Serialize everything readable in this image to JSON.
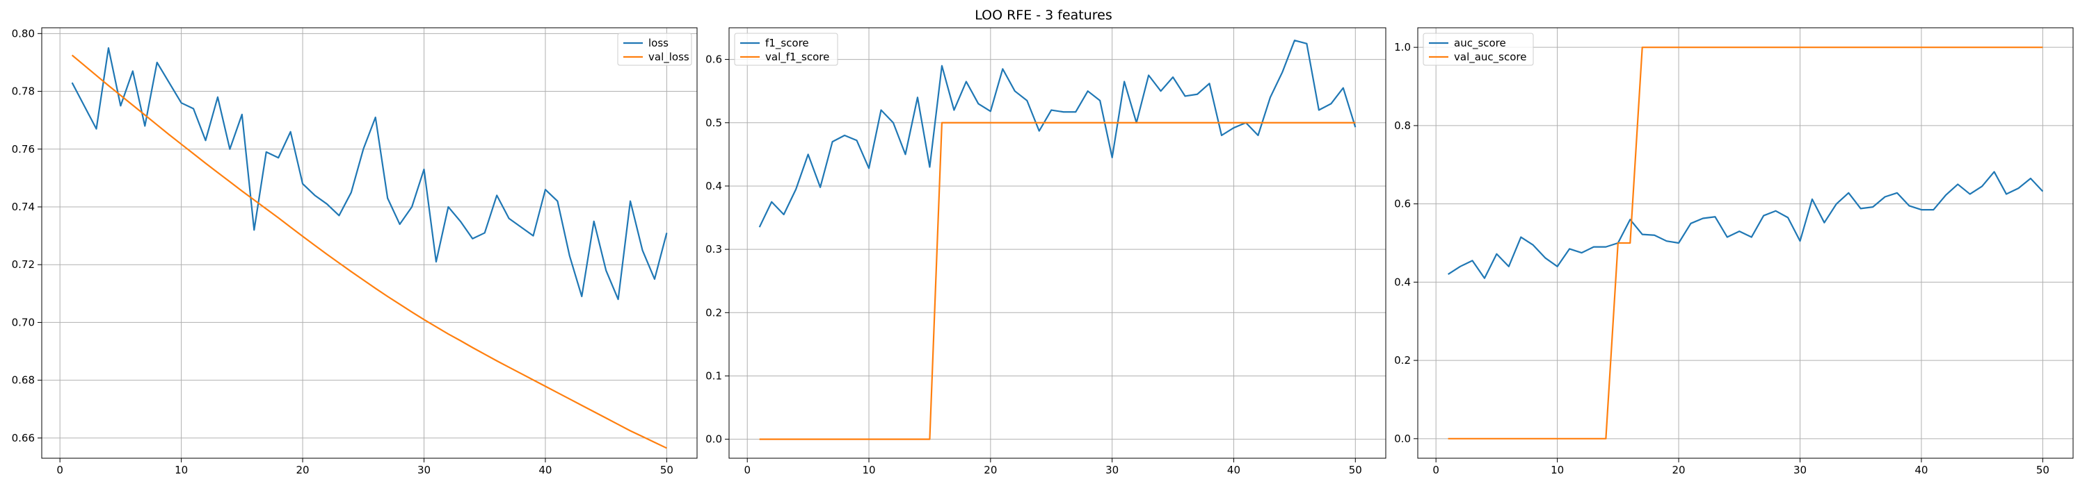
{
  "figure": {
    "title": "LOO RFE - 3 features"
  },
  "colors": {
    "train": "#1f77b4",
    "val": "#ff7f0e",
    "grid": "#b0b0b0"
  },
  "chart_data": [
    {
      "type": "line",
      "title": "",
      "xlabel": "",
      "ylabel": "",
      "xlim": [
        -1.5,
        52.5
      ],
      "ylim": [
        0.653,
        0.802
      ],
      "xticks": [
        0,
        10,
        20,
        30,
        40,
        50
      ],
      "yticks": [
        0.66,
        0.68,
        0.7,
        0.72,
        0.74,
        0.76,
        0.78,
        0.8
      ],
      "ytick_labels": [
        "0.66",
        "0.68",
        "0.70",
        "0.72",
        "0.74",
        "0.76",
        "0.78",
        "0.80"
      ],
      "grid": true,
      "legend_position": "top-right",
      "x": [
        1,
        2,
        3,
        4,
        5,
        6,
        7,
        8,
        9,
        10,
        11,
        12,
        13,
        14,
        15,
        16,
        17,
        18,
        19,
        20,
        21,
        22,
        23,
        24,
        25,
        26,
        27,
        28,
        29,
        30,
        31,
        32,
        33,
        34,
        35,
        36,
        37,
        38,
        39,
        40,
        41,
        42,
        43,
        44,
        45,
        46,
        47,
        48,
        49,
        50
      ],
      "series": [
        {
          "name": "loss",
          "color": "#1f77b4",
          "values": [
            0.783,
            0.775,
            0.767,
            0.795,
            0.775,
            0.787,
            0.768,
            0.79,
            0.783,
            0.776,
            0.774,
            0.763,
            0.778,
            0.76,
            0.772,
            0.732,
            0.759,
            0.757,
            0.766,
            0.748,
            0.744,
            0.741,
            0.737,
            0.745,
            0.76,
            0.771,
            0.743,
            0.734,
            0.74,
            0.753,
            0.721,
            0.74,
            0.735,
            0.729,
            0.731,
            0.744,
            0.736,
            0.733,
            0.73,
            0.746,
            0.742,
            0.723,
            0.709,
            0.735,
            0.718,
            0.708,
            0.742,
            0.725,
            0.715,
            0.731
          ]
        },
        {
          "name": "val_loss",
          "color": "#ff7f0e",
          "values": [
            0.7925,
            0.789,
            0.7855,
            0.782,
            0.7786,
            0.7752,
            0.7718,
            0.7684,
            0.765,
            0.7617,
            0.7584,
            0.7551,
            0.7519,
            0.7487,
            0.7455,
            0.7424,
            0.7393,
            0.7362,
            0.733,
            0.7298,
            0.7267,
            0.7236,
            0.7206,
            0.7176,
            0.7147,
            0.7118,
            0.709,
            0.7063,
            0.7036,
            0.701,
            0.6985,
            0.696,
            0.6937,
            0.6913,
            0.689,
            0.6867,
            0.6845,
            0.6823,
            0.6801,
            0.6779,
            0.6757,
            0.6735,
            0.6713,
            0.6691,
            0.6669,
            0.6647,
            0.6625,
            0.6605,
            0.6585,
            0.6565
          ]
        }
      ]
    },
    {
      "type": "line",
      "title": "",
      "xlabel": "",
      "ylabel": "",
      "xlim": [
        -1.5,
        52.5
      ],
      "ylim": [
        -0.03,
        0.65
      ],
      "xticks": [
        0,
        10,
        20,
        30,
        40,
        50
      ],
      "yticks": [
        0.0,
        0.1,
        0.2,
        0.3,
        0.4,
        0.5,
        0.6
      ],
      "ytick_labels": [
        "0.0",
        "0.1",
        "0.2",
        "0.3",
        "0.4",
        "0.5",
        "0.6"
      ],
      "grid": true,
      "legend_position": "top-left",
      "x": [
        1,
        2,
        3,
        4,
        5,
        6,
        7,
        8,
        9,
        10,
        11,
        12,
        13,
        14,
        15,
        16,
        17,
        18,
        19,
        20,
        21,
        22,
        23,
        24,
        25,
        26,
        27,
        28,
        29,
        30,
        31,
        32,
        33,
        34,
        35,
        36,
        37,
        38,
        39,
        40,
        41,
        42,
        43,
        44,
        45,
        46,
        47,
        48,
        49,
        50
      ],
      "series": [
        {
          "name": "f1_score",
          "color": "#1f77b4",
          "values": [
            0.335,
            0.375,
            0.355,
            0.395,
            0.45,
            0.398,
            0.47,
            0.48,
            0.472,
            0.428,
            0.52,
            0.5,
            0.45,
            0.54,
            0.43,
            0.59,
            0.52,
            0.565,
            0.53,
            0.518,
            0.585,
            0.55,
            0.535,
            0.487,
            0.52,
            0.517,
            0.517,
            0.55,
            0.535,
            0.445,
            0.565,
            0.5,
            0.575,
            0.55,
            0.572,
            0.542,
            0.545,
            0.562,
            0.48,
            0.492,
            0.5,
            0.48,
            0.54,
            0.58,
            0.63,
            0.625,
            0.52,
            0.53,
            0.555,
            0.493
          ]
        },
        {
          "name": "val_f1_score",
          "color": "#ff7f0e",
          "values": [
            0,
            0,
            0,
            0,
            0,
            0,
            0,
            0,
            0,
            0,
            0,
            0,
            0,
            0,
            0,
            0.5,
            0.5,
            0.5,
            0.5,
            0.5,
            0.5,
            0.5,
            0.5,
            0.5,
            0.5,
            0.5,
            0.5,
            0.5,
            0.5,
            0.5,
            0.5,
            0.5,
            0.5,
            0.5,
            0.5,
            0.5,
            0.5,
            0.5,
            0.5,
            0.5,
            0.5,
            0.5,
            0.5,
            0.5,
            0.5,
            0.5,
            0.5,
            0.5,
            0.5,
            0.5
          ]
        }
      ]
    },
    {
      "type": "line",
      "title": "",
      "xlabel": "",
      "ylabel": "",
      "xlim": [
        -1.5,
        52.5
      ],
      "ylim": [
        -0.05,
        1.05
      ],
      "xticks": [
        0,
        10,
        20,
        30,
        40,
        50
      ],
      "yticks": [
        0.0,
        0.2,
        0.4,
        0.6,
        0.8,
        1.0
      ],
      "ytick_labels": [
        "0.0",
        "0.2",
        "0.4",
        "0.6",
        "0.8",
        "1.0"
      ],
      "grid": true,
      "legend_position": "top-left",
      "x": [
        1,
        2,
        3,
        4,
        5,
        6,
        7,
        8,
        9,
        10,
        11,
        12,
        13,
        14,
        15,
        16,
        17,
        18,
        19,
        20,
        21,
        22,
        23,
        24,
        25,
        26,
        27,
        28,
        29,
        30,
        31,
        32,
        33,
        34,
        35,
        36,
        37,
        38,
        39,
        40,
        41,
        42,
        43,
        44,
        45,
        46,
        47,
        48,
        49,
        50
      ],
      "series": [
        {
          "name": "auc_score",
          "color": "#1f77b4",
          "values": [
            0.42,
            0.44,
            0.455,
            0.41,
            0.472,
            0.44,
            0.515,
            0.495,
            0.462,
            0.44,
            0.485,
            0.475,
            0.49,
            0.49,
            0.5,
            0.56,
            0.522,
            0.52,
            0.505,
            0.5,
            0.55,
            0.563,
            0.567,
            0.515,
            0.53,
            0.515,
            0.57,
            0.582,
            0.565,
            0.505,
            0.612,
            0.552,
            0.6,
            0.628,
            0.588,
            0.592,
            0.618,
            0.628,
            0.595,
            0.585,
            0.585,
            0.622,
            0.65,
            0.625,
            0.645,
            0.682,
            0.625,
            0.64,
            0.665,
            0.632
          ]
        },
        {
          "name": "val_auc_score",
          "color": "#ff7f0e",
          "values": [
            0,
            0,
            0,
            0,
            0,
            0,
            0,
            0,
            0,
            0,
            0,
            0,
            0,
            0,
            0.5,
            0.5,
            1,
            1,
            1,
            1,
            1,
            1,
            1,
            1,
            1,
            1,
            1,
            1,
            1,
            1,
            1,
            1,
            1,
            1,
            1,
            1,
            1,
            1,
            1,
            1,
            1,
            1,
            1,
            1,
            1,
            1,
            1,
            1,
            1,
            1
          ]
        }
      ]
    }
  ]
}
